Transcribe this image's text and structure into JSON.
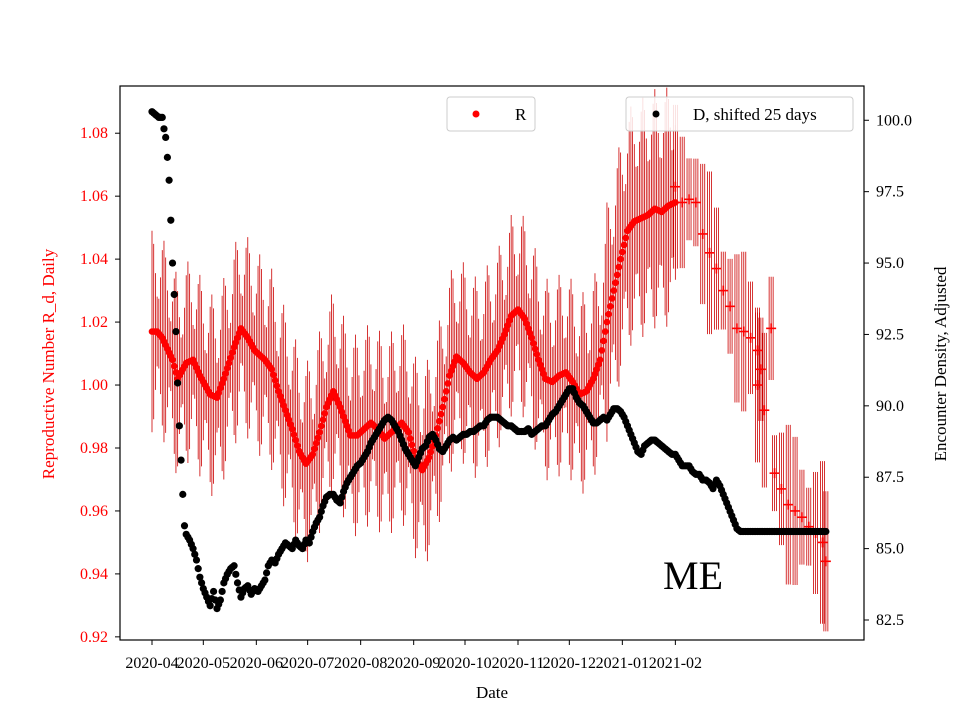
{
  "chart_data": {
    "type": "scatter",
    "title": "",
    "xlabel": "Date",
    "ylabel_left": "Reproductive Number R_d, Daily",
    "ylabel_right": "Encounter Density, Adjusted",
    "annotation": "ME",
    "x_ticks": [
      "2020-04",
      "2020-05",
      "2020-06",
      "2020-07",
      "2020-08",
      "2020-09",
      "2020-10",
      "2020-11",
      "2020-12",
      "2021-01",
      "2021-02"
    ],
    "y_left_ticks": [
      "0.92",
      "0.94",
      "0.96",
      "0.98",
      "1.00",
      "1.02",
      "1.04",
      "1.06",
      "1.08"
    ],
    "y_right_ticks": [
      "82.5",
      "85.0",
      "87.5",
      "90.0",
      "92.5",
      "95.0",
      "97.5",
      "100.0"
    ],
    "ylim_left": [
      0.919,
      1.095
    ],
    "ylim_right": [
      81.8,
      101.2
    ],
    "colors": {
      "r_series": "#ff0000",
      "errorbar": "#cc0000",
      "d_series": "#000000"
    },
    "legend": [
      {
        "label": "R",
        "color": "#ff0000",
        "position": "top-center"
      },
      {
        "label": "D, shifted 25 days",
        "color": "#000000",
        "position": "top-right"
      }
    ],
    "series": [
      {
        "name": "R",
        "axis": "left",
        "marker": "dot",
        "start_day": 0,
        "anchors": [
          [
            0,
            1.017
          ],
          [
            3,
            1.017
          ],
          [
            6,
            1.015
          ],
          [
            12,
            1.008
          ],
          [
            15,
            1.002
          ],
          [
            20,
            1.007
          ],
          [
            24,
            1.008
          ],
          [
            28,
            1.003
          ],
          [
            34,
            0.997
          ],
          [
            38,
            0.996
          ],
          [
            42,
            1.002
          ],
          [
            48,
            1.012
          ],
          [
            52,
            1.018
          ],
          [
            56,
            1.015
          ],
          [
            60,
            1.011
          ],
          [
            66,
            1.008
          ],
          [
            70,
            1.005
          ],
          [
            74,
            0.998
          ],
          [
            78,
            0.992
          ],
          [
            82,
            0.986
          ],
          [
            86,
            0.979
          ],
          [
            90,
            0.975
          ],
          [
            94,
            0.978
          ],
          [
            98,
            0.985
          ],
          [
            102,
            0.993
          ],
          [
            106,
            0.998
          ],
          [
            110,
            0.993
          ],
          [
            116,
            0.984
          ],
          [
            120,
            0.984
          ],
          [
            124,
            0.986
          ],
          [
            128,
            0.988
          ],
          [
            132,
            0.986
          ],
          [
            136,
            0.983
          ],
          [
            140,
            0.985
          ],
          [
            144,
            0.987
          ],
          [
            146,
            0.988
          ],
          [
            150,
            0.985
          ],
          [
            154,
            0.977
          ],
          [
            158,
            0.973
          ],
          [
            162,
            0.977
          ],
          [
            166,
            0.984
          ],
          [
            170,
            0.993
          ],
          [
            174,
            1.003
          ],
          [
            178,
            1.009
          ],
          [
            182,
            1.007
          ],
          [
            186,
            1.004
          ],
          [
            190,
            1.002
          ],
          [
            194,
            1.004
          ],
          [
            198,
            1.008
          ],
          [
            202,
            1.011
          ],
          [
            206,
            1.016
          ],
          [
            210,
            1.022
          ],
          [
            214,
            1.024
          ],
          [
            218,
            1.021
          ],
          [
            222,
            1.015
          ],
          [
            226,
            1.008
          ],
          [
            230,
            1.002
          ],
          [
            234,
            1.001
          ],
          [
            238,
            1.003
          ],
          [
            242,
            1.004
          ],
          [
            246,
            1.001
          ],
          [
            250,
            0.997
          ],
          [
            254,
            0.998
          ],
          [
            258,
            1.002
          ],
          [
            262,
            1.008
          ],
          [
            266,
            1.02
          ],
          [
            270,
            1.03
          ],
          [
            274,
            1.04
          ],
          [
            278,
            1.049
          ],
          [
            282,
            1.052
          ],
          [
            286,
            1.053
          ],
          [
            290,
            1.054
          ],
          [
            294,
            1.056
          ],
          [
            298,
            1.055
          ],
          [
            302,
            1.057
          ],
          [
            306,
            1.058
          ]
        ]
      },
      {
        "name": "R (forecast)",
        "axis": "left",
        "marker": "plus",
        "points": [
          [
            306,
            1.063
          ],
          [
            310,
            1.058
          ],
          [
            314,
            1.059
          ],
          [
            318,
            1.058
          ],
          [
            322,
            1.048
          ],
          [
            326,
            1.042
          ],
          [
            330,
            1.037
          ],
          [
            334,
            1.03
          ],
          [
            338,
            1.025
          ],
          [
            342,
            1.018
          ],
          [
            346,
            1.017
          ],
          [
            350,
            1.015
          ],
          [
            354,
            1.011
          ],
          [
            356,
            1.005
          ],
          [
            354,
            1.0
          ],
          [
            358,
            0.992
          ],
          [
            362,
            1.018
          ],
          [
            364,
            0.972
          ],
          [
            368,
            0.967
          ],
          [
            372,
            0.962
          ],
          [
            376,
            0.96
          ],
          [
            380,
            0.958
          ],
          [
            384,
            0.955
          ],
          [
            388,
            0.953
          ],
          [
            392,
            0.95
          ],
          [
            394,
            0.944
          ]
        ]
      },
      {
        "name": "D, shifted 25 days",
        "axis": "right",
        "marker": "dot",
        "points": [
          [
            0,
            100.3
          ],
          [
            2,
            100.2
          ],
          [
            4,
            100.1
          ],
          [
            6,
            100.1
          ],
          [
            7,
            99.7
          ],
          [
            8,
            99.4
          ],
          [
            9,
            98.7
          ],
          [
            10,
            97.9
          ],
          [
            11,
            96.5
          ],
          [
            12,
            95.0
          ],
          [
            13,
            93.9
          ],
          [
            14,
            92.6
          ],
          [
            15,
            90.8
          ],
          [
            16,
            89.3
          ],
          [
            17,
            88.1
          ],
          [
            18,
            86.9
          ],
          [
            19,
            85.8
          ],
          [
            20,
            85.5
          ],
          [
            22,
            85.3
          ],
          [
            24,
            85.0
          ],
          [
            26,
            84.6
          ],
          [
            28,
            84.0
          ],
          [
            30,
            83.6
          ],
          [
            32,
            83.3
          ],
          [
            34,
            83.0
          ],
          [
            36,
            83.5
          ],
          [
            38,
            82.9
          ],
          [
            40,
            83.2
          ],
          [
            42,
            83.8
          ],
          [
            44,
            84.1
          ],
          [
            46,
            84.3
          ],
          [
            48,
            84.4
          ],
          [
            50,
            83.8
          ],
          [
            52,
            83.3
          ],
          [
            54,
            83.6
          ],
          [
            56,
            83.7
          ],
          [
            58,
            83.4
          ],
          [
            60,
            83.6
          ],
          [
            62,
            83.5
          ],
          [
            64,
            83.7
          ],
          [
            66,
            83.9
          ],
          [
            68,
            84.4
          ],
          [
            70,
            84.6
          ],
          [
            72,
            84.5
          ],
          [
            74,
            84.8
          ],
          [
            76,
            85.0
          ],
          [
            78,
            85.2
          ],
          [
            80,
            85.1
          ],
          [
            82,
            85.0
          ],
          [
            84,
            85.3
          ],
          [
            86,
            85.1
          ],
          [
            88,
            85.0
          ],
          [
            90,
            85.3
          ],
          [
            92,
            85.2
          ],
          [
            94,
            85.6
          ],
          [
            96,
            85.9
          ],
          [
            98,
            86.1
          ],
          [
            100,
            86.5
          ],
          [
            102,
            86.8
          ],
          [
            104,
            86.9
          ],
          [
            106,
            86.9
          ],
          [
            108,
            86.7
          ],
          [
            110,
            86.6
          ],
          [
            112,
            87.0
          ],
          [
            114,
            87.3
          ],
          [
            116,
            87.5
          ],
          [
            118,
            87.7
          ],
          [
            120,
            87.9
          ],
          [
            122,
            88.0
          ],
          [
            124,
            88.2
          ],
          [
            126,
            88.4
          ],
          [
            128,
            88.7
          ],
          [
            130,
            88.9
          ],
          [
            132,
            89.1
          ],
          [
            134,
            89.3
          ],
          [
            136,
            89.5
          ],
          [
            138,
            89.6
          ],
          [
            140,
            89.5
          ],
          [
            142,
            89.3
          ],
          [
            144,
            89.1
          ],
          [
            146,
            88.8
          ],
          [
            148,
            88.5
          ],
          [
            150,
            88.3
          ],
          [
            152,
            88.1
          ],
          [
            154,
            87.9
          ],
          [
            156,
            88.2
          ],
          [
            158,
            88.5
          ],
          [
            160,
            88.6
          ],
          [
            162,
            88.9
          ],
          [
            164,
            89.0
          ],
          [
            166,
            88.8
          ],
          [
            168,
            88.5
          ],
          [
            170,
            88.4
          ],
          [
            172,
            88.6
          ],
          [
            174,
            88.8
          ],
          [
            176,
            88.9
          ],
          [
            178,
            88.8
          ],
          [
            180,
            88.9
          ],
          [
            182,
            89.0
          ],
          [
            184,
            89.0
          ],
          [
            186,
            89.1
          ],
          [
            188,
            89.1
          ],
          [
            190,
            89.2
          ],
          [
            192,
            89.3
          ],
          [
            194,
            89.3
          ],
          [
            196,
            89.5
          ],
          [
            198,
            89.6
          ],
          [
            200,
            89.6
          ],
          [
            202,
            89.6
          ],
          [
            204,
            89.5
          ],
          [
            206,
            89.4
          ],
          [
            208,
            89.3
          ],
          [
            210,
            89.3
          ],
          [
            212,
            89.2
          ],
          [
            214,
            89.1
          ],
          [
            216,
            89.1
          ],
          [
            218,
            89.1
          ],
          [
            220,
            89.2
          ],
          [
            222,
            89.0
          ],
          [
            224,
            89.1
          ],
          [
            226,
            89.2
          ],
          [
            228,
            89.3
          ],
          [
            230,
            89.3
          ],
          [
            232,
            89.5
          ],
          [
            234,
            89.7
          ],
          [
            236,
            89.8
          ],
          [
            238,
            90.0
          ],
          [
            240,
            90.2
          ],
          [
            242,
            90.4
          ],
          [
            244,
            90.6
          ],
          [
            246,
            90.6
          ],
          [
            248,
            90.3
          ],
          [
            250,
            90.1
          ],
          [
            252,
            90.0
          ],
          [
            254,
            89.8
          ],
          [
            256,
            89.6
          ],
          [
            258,
            89.4
          ],
          [
            260,
            89.4
          ],
          [
            262,
            89.5
          ],
          [
            264,
            89.6
          ],
          [
            266,
            89.5
          ],
          [
            268,
            89.7
          ],
          [
            270,
            89.9
          ],
          [
            272,
            89.9
          ],
          [
            274,
            89.8
          ],
          [
            276,
            89.6
          ],
          [
            278,
            89.3
          ],
          [
            280,
            89.0
          ],
          [
            282,
            88.7
          ],
          [
            284,
            88.4
          ],
          [
            286,
            88.3
          ],
          [
            288,
            88.6
          ],
          [
            290,
            88.7
          ],
          [
            292,
            88.8
          ],
          [
            294,
            88.8
          ],
          [
            296,
            88.7
          ],
          [
            298,
            88.6
          ],
          [
            300,
            88.5
          ],
          [
            302,
            88.4
          ],
          [
            304,
            88.3
          ],
          [
            306,
            88.3
          ],
          [
            308,
            88.1
          ],
          [
            310,
            87.9
          ],
          [
            312,
            87.9
          ],
          [
            314,
            87.9
          ],
          [
            316,
            87.7
          ],
          [
            318,
            87.6
          ],
          [
            320,
            87.6
          ],
          [
            322,
            87.4
          ],
          [
            324,
            87.4
          ],
          [
            326,
            87.3
          ],
          [
            328,
            87.1
          ],
          [
            330,
            87.4
          ],
          [
            332,
            87.2
          ],
          [
            334,
            86.9
          ],
          [
            336,
            86.6
          ],
          [
            338,
            86.3
          ],
          [
            340,
            86.0
          ],
          [
            342,
            85.7
          ],
          [
            344,
            85.6
          ],
          [
            346,
            85.6
          ],
          [
            348,
            85.6
          ],
          [
            350,
            85.6
          ],
          [
            352,
            85.6
          ],
          [
            354,
            85.6
          ],
          [
            356,
            85.6
          ],
          [
            358,
            85.6
          ],
          [
            360,
            85.6
          ],
          [
            362,
            85.6
          ],
          [
            364,
            85.6
          ],
          [
            366,
            85.6
          ],
          [
            368,
            85.6
          ],
          [
            370,
            85.6
          ],
          [
            372,
            85.6
          ],
          [
            374,
            85.6
          ],
          [
            376,
            85.6
          ],
          [
            378,
            85.6
          ],
          [
            380,
            85.6
          ],
          [
            382,
            85.6
          ],
          [
            384,
            85.6
          ],
          [
            386,
            85.6
          ],
          [
            388,
            85.6
          ],
          [
            390,
            85.6
          ],
          [
            392,
            85.6
          ],
          [
            394,
            85.6
          ]
        ]
      }
    ]
  }
}
